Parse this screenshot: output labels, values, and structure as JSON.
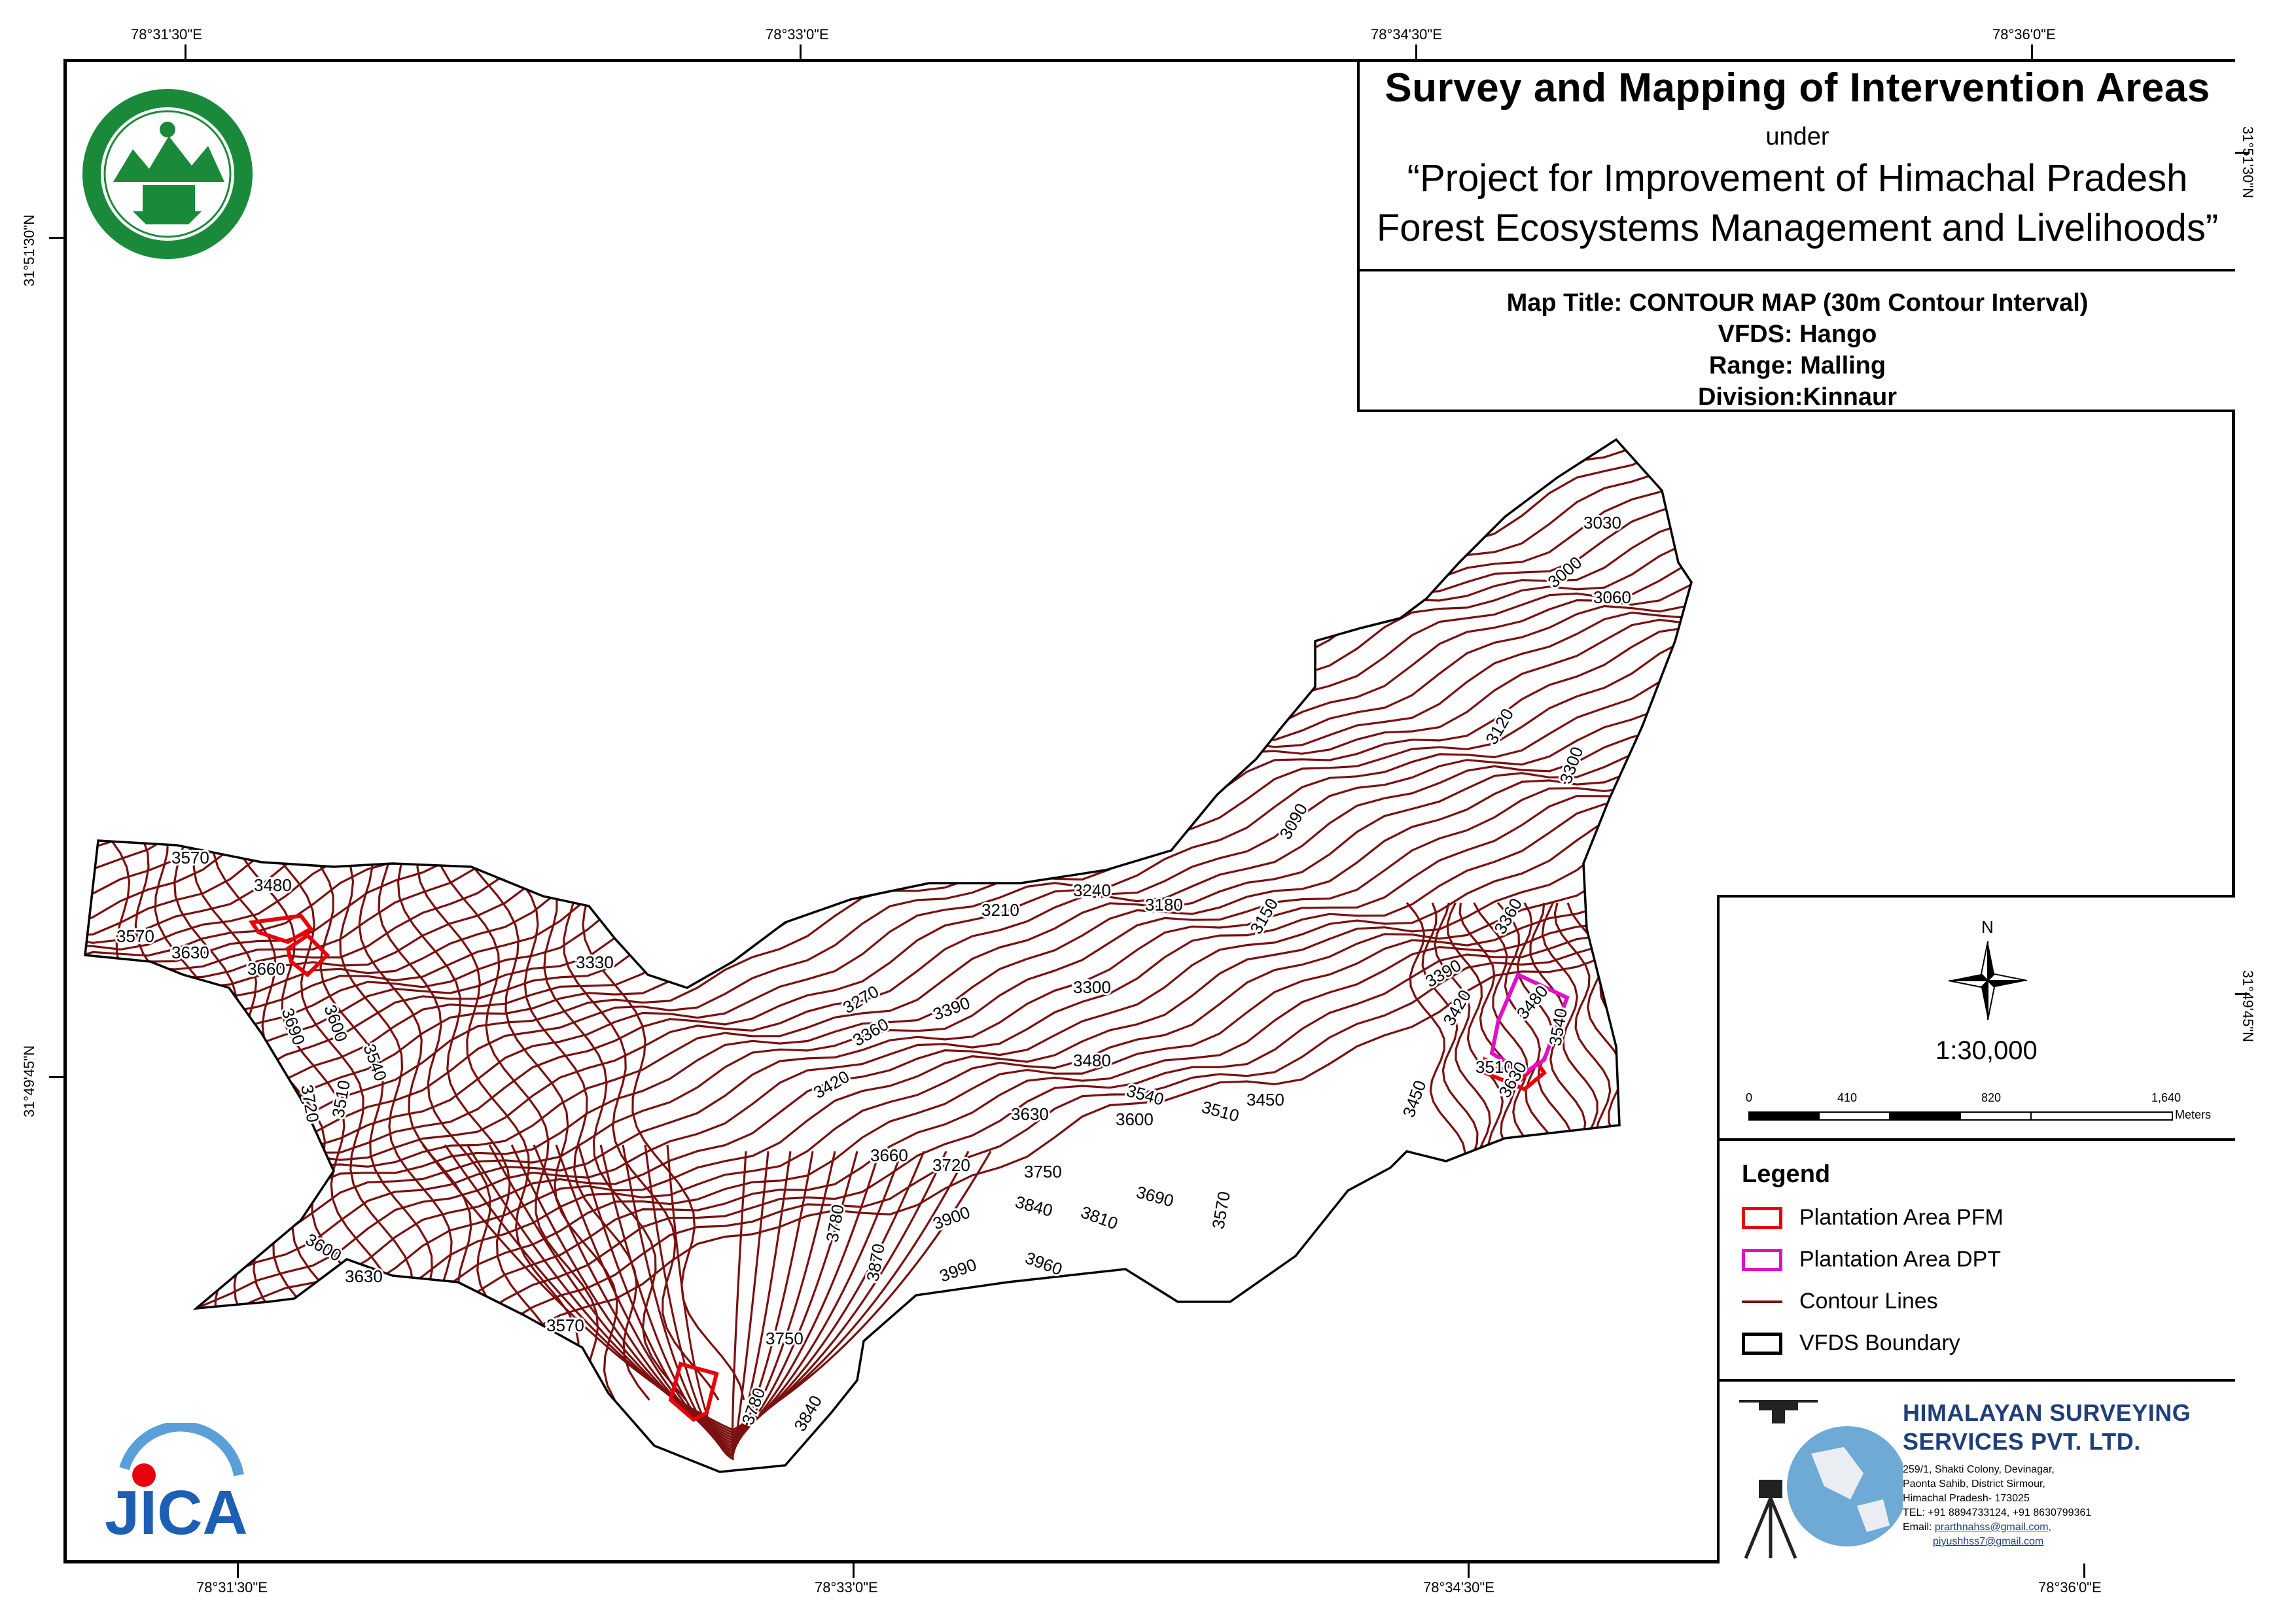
{
  "coordinates": {
    "top": [
      "78°31'30\"E",
      "78°33'0\"E",
      "78°34'30\"E",
      "78°36'0\"E"
    ],
    "bottom": [
      "78°31'30\"E",
      "78°33'0\"E",
      "78°34'30\"E",
      "78°36'0\"E"
    ],
    "left": [
      "31°51'30\"N",
      "31°49'45\"N"
    ],
    "right": [
      "31°51'30\"N",
      "31°49'45\"N"
    ]
  },
  "header": {
    "title": "Survey and Mapping of Intervention Areas",
    "under": "under",
    "project_line1": "“Project for Improvement of Himachal Pradesh",
    "project_line2": "Forest Ecosystems Management and Livelihoods”"
  },
  "map_info": {
    "map_title": "Map Title: CONTOUR MAP (30m Contour Interval)",
    "vfds": "VFDS: Hango",
    "range": "Range: Malling",
    "division": "Division:Kinnaur"
  },
  "north_arrow": {
    "label": "N"
  },
  "scale": {
    "ratio": "1:30,000",
    "ticks": [
      "0",
      "410",
      "820",
      "1,640"
    ],
    "unit": "Meters"
  },
  "legend": {
    "title": "Legend",
    "items": [
      {
        "label": "Plantation Area PFM",
        "color": "#e8000b",
        "kind": "box"
      },
      {
        "label": "Plantation Area DPT",
        "color": "#e010c8",
        "kind": "box"
      },
      {
        "label": "Contour Lines",
        "color": "#7a1010",
        "kind": "line"
      },
      {
        "label": "VFDS Boundary",
        "color": "#000000",
        "kind": "box"
      }
    ]
  },
  "company": {
    "name_line1": "HIMALAYAN SURVEYING",
    "name_line2": "SERVICES PVT. LTD.",
    "address1": "259/1, Shakti Colony, Devinagar,",
    "address2": "Paonta Sahib, District Sirmour,",
    "address3": "Himachal Pradesh- 173025",
    "phone": "TEL: +91 8894733124, +91 8630799361",
    "email_label": "Email:",
    "email1": "prarthnahss@gmail.com,",
    "email2": "piyushhss7@gmail.com"
  },
  "logos": {
    "forest_dept": "hp-forest-department-seal",
    "forest_seal_top_text": "वन श्री त्राण, विश्व कल्याण",
    "forest_seal_bottom_text": "वन विभाग हिमाचल प्रदेश",
    "jica": "JICA"
  },
  "contour_labels": [
    "3570",
    "3480",
    "3570",
    "3630",
    "3660",
    "3690",
    "3600",
    "3540",
    "3720",
    "3510",
    "3330",
    "3270",
    "3360",
    "3390",
    "3420",
    "3300",
    "3210",
    "3240",
    "3180",
    "3480",
    "3540",
    "3510",
    "3450",
    "3630",
    "3600",
    "3660",
    "3720",
    "3750",
    "3840",
    "3810",
    "3690",
    "3570",
    "3900",
    "3960",
    "3990",
    "3870",
    "3780",
    "3600",
    "3630",
    "3570",
    "3750",
    "3780",
    "3840",
    "3150",
    "3090",
    "3120",
    "3030",
    "3000",
    "3060",
    "3300",
    "3360",
    "3390",
    "3420",
    "3480",
    "3510",
    "3630",
    "3540",
    "3450"
  ],
  "colors": {
    "contour": "#7a1010",
    "pfm": "#e8000b",
    "dpt": "#e010c8",
    "company_blue": "#1f3e7a",
    "seal_green": "#1a8a3a"
  }
}
